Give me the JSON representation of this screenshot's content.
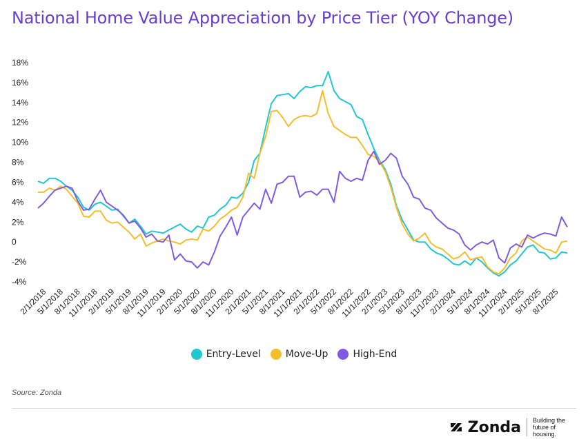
{
  "title": "National Home Value Appreciation by Price Tier (YOY Change)",
  "source": "Source: Zonda",
  "brand": {
    "name": "Zonda",
    "mark": "Z",
    "tagline": "Building the future of housing."
  },
  "legend": [
    {
      "name": "Entry-Level",
      "color": "#1fc8d1"
    },
    {
      "name": "Move-Up",
      "color": "#f6bd2b"
    },
    {
      "name": "High-End",
      "color": "#7f5be0"
    }
  ],
  "chart_data": {
    "type": "line",
    "title": "National Home Value Appreciation by Price Tier (YOY Change)",
    "xlabel": "",
    "ylabel": "",
    "ylim": [
      -4,
      18
    ],
    "yticks": [
      "18%",
      "16%",
      "14%",
      "12%",
      "10%",
      "8%",
      "6%",
      "4%",
      "2%",
      "0",
      "-2%",
      "-4%"
    ],
    "ytick_values": [
      18,
      16,
      14,
      12,
      10,
      8,
      6,
      4,
      2,
      0,
      -2,
      -4
    ],
    "xticks": [
      "2/1/2018",
      "5/1/2018",
      "8/1/2018",
      "11/1/2018",
      "2/1/2019",
      "5/1/2019",
      "8/1/2019",
      "11/1/2019",
      "2/1/2020",
      "5/1/2020",
      "8/1/2020",
      "11/1/2020",
      "2/1/2021",
      "5/1/2021",
      "8/1/2021",
      "11/1/2021",
      "2/1/2022",
      "5/1/2022",
      "8/1/2022",
      "11/1/2022",
      "2/1/2023",
      "5/1/2023",
      "8/1/2023",
      "11/1/2023",
      "2/1/2024",
      "5/1/2024",
      "8/1/2024",
      "11/1/2024",
      "2/1/2025",
      "5/1/2025",
      "8/1/2025"
    ],
    "grid": false,
    "legend_position": "bottom",
    "x_start": "2018-01",
    "x_step": "month",
    "series": [
      {
        "name": "Entry-Level",
        "color": "#1fc8d1",
        "values": [
          6.1,
          5.9,
          6.4,
          6.4,
          6.1,
          5.6,
          5.2,
          4.5,
          3.5,
          3.2,
          3.8,
          4.0,
          3.6,
          3.2,
          3.3,
          2.6,
          1.9,
          2.3,
          1.6,
          0.8,
          1.1,
          1.0,
          0.9,
          1.2,
          1.5,
          1.8,
          1.3,
          1.0,
          1.6,
          1.4,
          2.5,
          2.7,
          3.3,
          3.7,
          4.5,
          4.4,
          4.9,
          6.0,
          8.2,
          8.9,
          11.5,
          13.9,
          14.7,
          14.8,
          14.9,
          14.4,
          15.1,
          15.6,
          15.5,
          15.7,
          15.7,
          17.1,
          15.2,
          14.4,
          14.1,
          13.8,
          12.6,
          12.3,
          10.8,
          9.4,
          8.2,
          7.3,
          5.8,
          3.6,
          2.2,
          1.2,
          0.2,
          0.0,
          0.0,
          -0.7,
          -1.1,
          -1.3,
          -1.7,
          -2.2,
          -2.3,
          -1.9,
          -2.3,
          -1.6,
          -2.0,
          -2.6,
          -3.1,
          -3.4,
          -3.0,
          -2.3,
          -1.9,
          -1.2,
          -0.5,
          -0.3,
          -1.0,
          -1.1,
          -1.7,
          -1.6,
          -1.0,
          -1.1
        ]
      },
      {
        "name": "Move-Up",
        "color": "#f6bd2b",
        "values": [
          5.0,
          5.0,
          5.4,
          5.2,
          5.6,
          5.3,
          4.6,
          3.9,
          2.6,
          2.5,
          3.1,
          3.1,
          2.2,
          1.9,
          2.0,
          1.5,
          1.0,
          0.3,
          0.8,
          -0.4,
          -0.1,
          0.1,
          0.3,
          0.1,
          0.0,
          -0.2,
          0.2,
          0.3,
          0.2,
          1.3,
          1.1,
          1.6,
          2.3,
          2.7,
          3.2,
          3.5,
          4.5,
          6.9,
          6.4,
          8.9,
          10.6,
          13.1,
          13.2,
          12.5,
          11.6,
          12.3,
          12.6,
          12.7,
          12.6,
          12.9,
          15.2,
          12.9,
          11.6,
          11.2,
          10.8,
          10.5,
          10.5,
          9.7,
          8.8,
          8.6,
          8.1,
          7.1,
          5.5,
          3.4,
          1.8,
          0.8,
          0.1,
          0.4,
          0.9,
          -0.1,
          -0.5,
          -0.7,
          -1.2,
          -1.7,
          -1.5,
          -1.0,
          -1.8,
          -1.6,
          -1.5,
          -2.5,
          -3.0,
          -3.2,
          -2.6,
          -1.6,
          -1.1,
          0.1,
          0.5,
          0.1,
          -0.3,
          -0.7,
          -0.8,
          -1.1,
          0.0,
          0.1
        ]
      },
      {
        "name": "High-End",
        "color": "#7f5be0",
        "values": [
          3.4,
          3.9,
          4.6,
          5.2,
          5.4,
          5.6,
          5.4,
          4.1,
          3.2,
          3.3,
          4.3,
          5.2,
          4.0,
          3.6,
          3.2,
          2.7,
          1.9,
          2.1,
          1.4,
          0.5,
          0.8,
          0.1,
          0.0,
          0.7,
          -1.8,
          -1.2,
          -1.9,
          -2.0,
          -2.6,
          -2.0,
          -2.3,
          -1.0,
          0.6,
          1.5,
          2.5,
          0.7,
          2.5,
          3.2,
          3.9,
          3.3,
          5.3,
          3.9,
          5.8,
          6.0,
          6.6,
          6.6,
          4.5,
          5.0,
          5.1,
          4.7,
          5.3,
          5.3,
          4.0,
          7.1,
          6.4,
          6.1,
          6.4,
          6.2,
          8.2,
          9.1,
          7.8,
          8.2,
          8.9,
          8.4,
          6.6,
          5.8,
          4.5,
          4.3,
          3.4,
          3.2,
          2.4,
          1.9,
          1.4,
          1.2,
          0.8,
          -0.3,
          -0.8,
          -0.3,
          0.0,
          -0.2,
          0.2,
          -1.6,
          -2.1,
          -0.6,
          -0.2,
          -0.5,
          0.7,
          0.4,
          0.7,
          0.9,
          0.8,
          0.6,
          2.5,
          1.5
        ]
      }
    ]
  }
}
